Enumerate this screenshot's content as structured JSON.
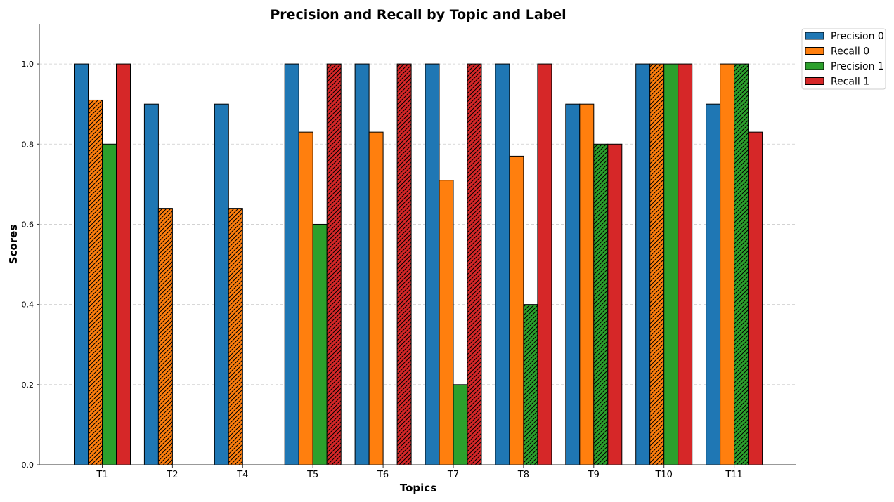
{
  "chart_data": {
    "type": "bar",
    "title": "Precision and Recall by Topic and Label",
    "xlabel": "Topics",
    "ylabel": "Scores",
    "ylim": [
      0,
      1.1
    ],
    "yticks": [
      "0.0",
      "0.2",
      "0.4",
      "0.6",
      "0.8",
      "1.0"
    ],
    "grid": "horizontal dashed",
    "legend_position": "top-right outside",
    "categories": [
      "T1",
      "T2",
      "T4",
      "T5",
      "T6",
      "T7",
      "T8",
      "T9",
      "T10",
      "T11"
    ],
    "series": [
      {
        "name": "Precision 0",
        "color": "#1f77b4",
        "values": [
          1.0,
          0.9,
          0.9,
          1.0,
          1.0,
          1.0,
          1.0,
          0.9,
          1.0,
          0.9
        ],
        "hatched": [
          false,
          false,
          false,
          false,
          false,
          false,
          false,
          false,
          false,
          false
        ]
      },
      {
        "name": "Recall 0",
        "color": "#ff7f0e",
        "values": [
          0.91,
          0.64,
          0.64,
          0.83,
          0.83,
          0.71,
          0.77,
          0.9,
          1.0,
          1.0
        ],
        "hatched": [
          true,
          true,
          true,
          false,
          false,
          false,
          false,
          false,
          true,
          false
        ]
      },
      {
        "name": "Precision 1",
        "color": "#2ca02c",
        "values": [
          0.8,
          0.0,
          0.0,
          0.6,
          0.0,
          0.2,
          0.4,
          0.8,
          1.0,
          1.0
        ],
        "hatched": [
          false,
          false,
          false,
          false,
          false,
          false,
          true,
          true,
          false,
          true
        ]
      },
      {
        "name": "Recall 1",
        "color": "#d62728",
        "values": [
          1.0,
          0.0,
          0.0,
          1.0,
          1.0,
          1.0,
          1.0,
          0.8,
          1.0,
          0.83
        ],
        "hatched": [
          false,
          false,
          false,
          true,
          true,
          true,
          false,
          false,
          false,
          false
        ]
      }
    ]
  }
}
